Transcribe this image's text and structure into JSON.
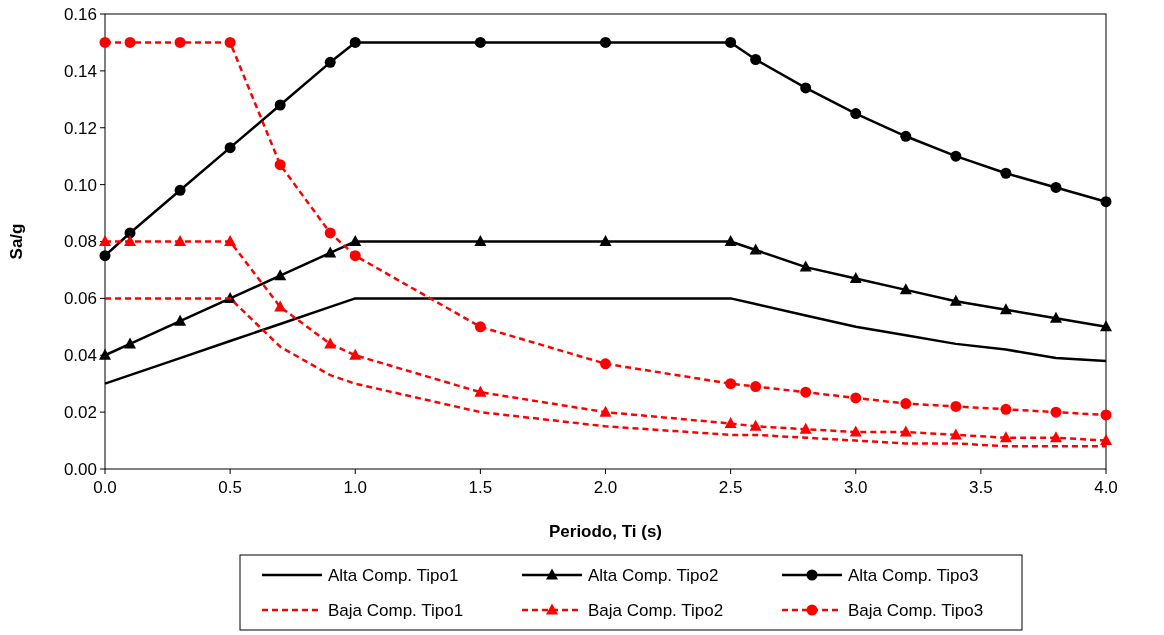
{
  "chart_data": {
    "type": "line",
    "xlabel": "Periodo, Ti   (s)",
    "ylabel": "Sa/g",
    "x": [
      0,
      0.1,
      0.3,
      0.5,
      0.7,
      0.9,
      1.0,
      1.5,
      2.0,
      2.5,
      2.6,
      2.8,
      3.0,
      3.2,
      3.4,
      3.6,
      3.8,
      4.0
    ],
    "series": [
      {
        "name": "Alta Comp. Tipo1",
        "color": "#000000",
        "marker": "none",
        "line_style": "solid",
        "values": [
          0.03,
          0.033,
          0.039,
          0.045,
          0.051,
          0.057,
          0.06,
          0.06,
          0.06,
          0.06,
          0.058,
          0.054,
          0.05,
          0.047,
          0.044,
          0.042,
          0.039,
          0.038
        ]
      },
      {
        "name": "Alta Comp. Tipo2",
        "color": "#000000",
        "marker": "triangle",
        "line_style": "solid",
        "values": [
          0.04,
          0.044,
          0.052,
          0.06,
          0.068,
          0.076,
          0.08,
          0.08,
          0.08,
          0.08,
          0.077,
          0.071,
          0.067,
          0.063,
          0.059,
          0.056,
          0.053,
          0.05
        ]
      },
      {
        "name": "Alta Comp. Tipo3",
        "color": "#000000",
        "marker": "circle",
        "line_style": "solid",
        "values": [
          0.075,
          0.083,
          0.098,
          0.113,
          0.128,
          0.143,
          0.15,
          0.15,
          0.15,
          0.15,
          0.144,
          0.134,
          0.125,
          0.117,
          0.11,
          0.104,
          0.099,
          0.094
        ]
      },
      {
        "name": "Baja Comp. Tipo1",
        "color": "#ff0000",
        "marker": "none",
        "line_style": "dashed",
        "values": [
          0.06,
          0.06,
          0.06,
          0.06,
          0.043,
          0.033,
          0.03,
          0.02,
          0.015,
          0.012,
          0.012,
          0.011,
          0.01,
          0.009,
          0.009,
          0.008,
          0.008,
          0.008
        ]
      },
      {
        "name": "Baja Comp. Tipo2",
        "color": "#ff0000",
        "marker": "triangle",
        "line_style": "dashed",
        "values": [
          0.08,
          0.08,
          0.08,
          0.08,
          0.057,
          0.044,
          0.04,
          0.027,
          0.02,
          0.016,
          0.015,
          0.014,
          0.013,
          0.013,
          0.012,
          0.011,
          0.011,
          0.01
        ]
      },
      {
        "name": "Baja Comp. Tipo3",
        "color": "#ff0000",
        "marker": "circle",
        "line_style": "dashed",
        "values": [
          0.15,
          0.15,
          0.15,
          0.15,
          0.107,
          0.083,
          0.075,
          0.05,
          0.037,
          0.03,
          0.029,
          0.027,
          0.025,
          0.023,
          0.022,
          0.021,
          0.02,
          0.019
        ]
      }
    ],
    "xlim": [
      0,
      4
    ],
    "xticks": [
      {
        "value": 0,
        "label": "0.0"
      },
      {
        "value": 0.5,
        "label": "0.5"
      },
      {
        "value": 1,
        "label": "1.0"
      },
      {
        "value": 1.5,
        "label": "1.5"
      },
      {
        "value": 2,
        "label": "2.0"
      },
      {
        "value": 2.5,
        "label": "2.5"
      },
      {
        "value": 3,
        "label": "3.0"
      },
      {
        "value": 3.5,
        "label": "3.5"
      },
      {
        "value": 4,
        "label": "4.0"
      }
    ],
    "ylim": [
      0,
      0.16
    ],
    "yticks": [
      {
        "value": 0,
        "label": "0.00"
      },
      {
        "value": 0.02,
        "label": "0.02"
      },
      {
        "value": 0.04,
        "label": "0.04"
      },
      {
        "value": 0.06,
        "label": "0.06"
      },
      {
        "value": 0.08,
        "label": "0.08"
      },
      {
        "value": 0.1,
        "label": "0.10"
      },
      {
        "value": 0.12,
        "label": "0.12"
      },
      {
        "value": 0.14,
        "label": "0.14"
      },
      {
        "value": 0.16,
        "label": "0.16"
      }
    ],
    "grid": false,
    "legend": "bottom"
  }
}
